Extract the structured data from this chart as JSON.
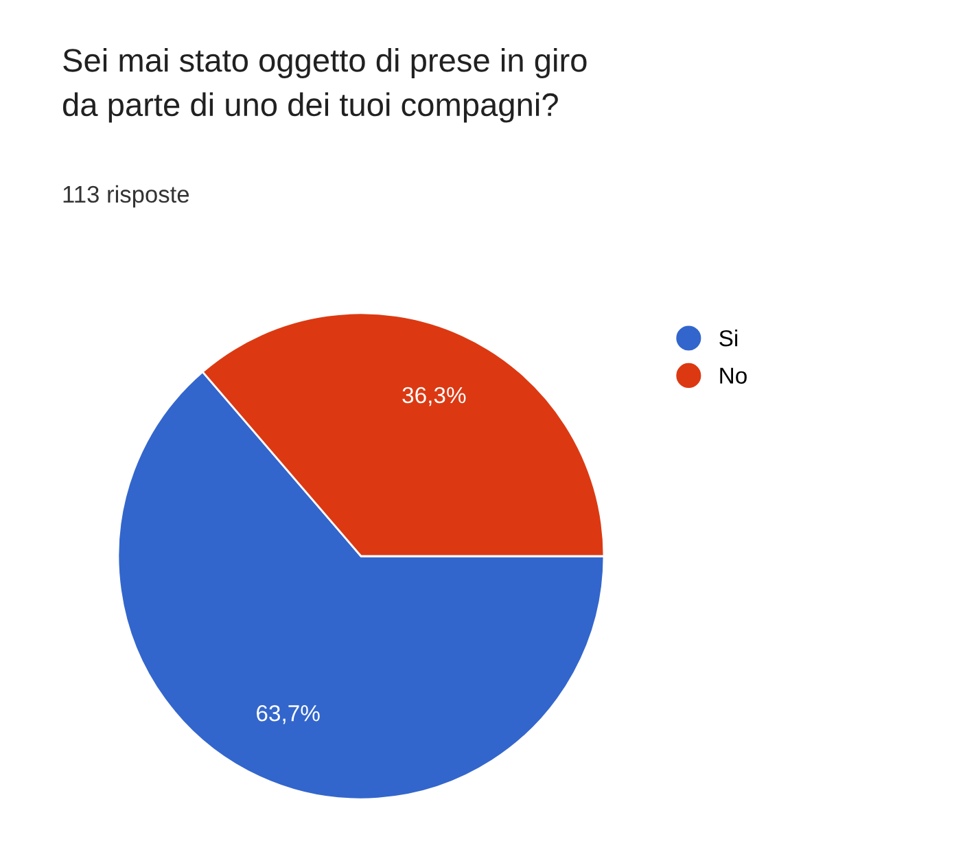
{
  "chart_data": {
    "type": "pie",
    "title": "Sei mai stato oggetto di prese in giro\nda parte di uno dei tuoi compagni?",
    "subtitle": "113 risposte",
    "categories": [
      "Si",
      "No"
    ],
    "values": [
      63.7,
      36.3
    ],
    "colors": [
      "#3366cc",
      "#dc3912"
    ],
    "value_labels": [
      "63,7%",
      "36,3%"
    ],
    "legend": "top right"
  }
}
